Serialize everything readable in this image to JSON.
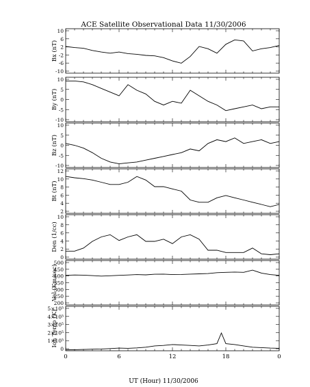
{
  "title": "ACE Satellite Observational Data   11/30/2006",
  "xlabel": "UT (Hour)  11/30/2006",
  "x_ticks": [
    "0",
    "6",
    "12",
    "18",
    "0"
  ],
  "chart_data": [
    {
      "type": "line",
      "ylabel": "Bx (nT)",
      "ylim": [
        -10,
        10
      ],
      "y_ticks": [
        "10",
        "6",
        "2",
        "-2",
        "-6",
        "-10"
      ],
      "x": [
        0,
        1,
        2,
        3,
        4,
        5,
        6,
        7,
        8,
        9,
        10,
        11,
        12,
        13,
        14,
        15,
        16,
        17,
        18,
        19,
        20,
        21,
        22,
        23,
        24
      ],
      "values": [
        2,
        1.5,
        1.2,
        0.2,
        -0.5,
        -1,
        -0.5,
        -1.2,
        -1.5,
        -2,
        -2.2,
        -3,
        -4.5,
        -5.5,
        -2.5,
        2,
        1,
        -1,
        3,
        5,
        4.5,
        0,
        1,
        1.5,
        2.5
      ]
    },
    {
      "type": "line",
      "ylabel": "By (nT)",
      "ylim": [
        -12,
        12
      ],
      "y_ticks": [
        "10",
        "5",
        "0",
        "-5",
        "-10"
      ],
      "x": [
        0,
        1,
        2,
        3,
        4,
        5,
        6,
        7,
        8,
        9,
        10,
        11,
        12,
        13,
        14,
        15,
        16,
        17,
        18,
        19,
        20,
        21,
        22,
        23,
        24
      ],
      "values": [
        10,
        10,
        9.5,
        8,
        6,
        4,
        2,
        8,
        5,
        3,
        -1,
        -3,
        -1,
        -2,
        5,
        2,
        -1,
        -3,
        -6,
        -5,
        -4,
        -3,
        -5,
        -4,
        -4
      ]
    },
    {
      "type": "line",
      "ylabel": "Bz (nT)",
      "ylim": [
        -12,
        12
      ],
      "y_ticks": [
        "10",
        "5",
        "0",
        "-5",
        "-10"
      ],
      "x": [
        0,
        1,
        2,
        3,
        4,
        5,
        6,
        7,
        8,
        9,
        10,
        11,
        12,
        13,
        14,
        15,
        16,
        17,
        18,
        19,
        20,
        21,
        22,
        23,
        24
      ],
      "values": [
        1,
        0,
        -1.5,
        -4,
        -7,
        -9,
        -10,
        -9.5,
        -9,
        -8,
        -7,
        -6,
        -5,
        -4,
        -2,
        -3,
        1,
        3,
        2,
        4,
        1,
        2,
        3,
        1,
        2
      ]
    },
    {
      "type": "line",
      "ylabel": "Bt (nT)",
      "ylim": [
        2,
        12
      ],
      "y_ticks": [
        "12",
        "10",
        "8",
        "6",
        "4",
        "2"
      ],
      "x": [
        0,
        1,
        2,
        3,
        4,
        5,
        6,
        7,
        8,
        9,
        10,
        11,
        12,
        13,
        14,
        15,
        16,
        17,
        18,
        19,
        20,
        21,
        22,
        23,
        24
      ],
      "values": [
        10.3,
        10,
        9.8,
        9.5,
        9,
        8.5,
        8.5,
        9,
        10.3,
        9.5,
        8,
        8,
        7.5,
        7,
        5,
        4.5,
        4.5,
        5.5,
        6,
        5.5,
        5,
        4.5,
        4,
        3.5,
        4
      ]
    },
    {
      "type": "line",
      "ylabel": "Den (1/cc)",
      "ylim": [
        0,
        10
      ],
      "y_ticks": [
        "10",
        "8",
        "6",
        "4",
        "2",
        "0"
      ],
      "x": [
        0,
        1,
        2,
        3,
        4,
        5,
        6,
        7,
        8,
        9,
        10,
        11,
        12,
        13,
        14,
        15,
        16,
        17,
        18,
        19,
        20,
        21,
        22,
        23,
        24
      ],
      "values": [
        1.8,
        1.8,
        2.5,
        4,
        5,
        5.5,
        4.2,
        5,
        5.5,
        4,
        4,
        4.5,
        3.5,
        5,
        5.5,
        4.5,
        2,
        2,
        1.5,
        1.5,
        1.5,
        2.5,
        1.2,
        1,
        1.2
      ]
    },
    {
      "type": "line",
      "ylabel": "Vel (Km/sec)",
      "ylim": [
        200,
        500
      ],
      "y_ticks": [
        "500",
        "450",
        "400",
        "350",
        "300",
        "250",
        "200"
      ],
      "x": [
        0,
        1,
        2,
        3,
        4,
        5,
        6,
        7,
        8,
        9,
        10,
        11,
        12,
        13,
        14,
        15,
        16,
        17,
        18,
        19,
        20,
        21,
        22,
        23,
        24
      ],
      "values": [
        400,
        402,
        401,
        398,
        395,
        397,
        400,
        402,
        405,
        403,
        407,
        408,
        405,
        406,
        408,
        410,
        412,
        418,
        420,
        422,
        420,
        435,
        415,
        405,
        400
      ]
    },
    {
      "type": "line",
      "ylabel": "Ion Temp (K)",
      "ylim": [
        0,
        500000
      ],
      "y_ticks": [
        "5×10⁵",
        "4×10⁵",
        "3×10⁵",
        "2×10⁵",
        "1×10⁵",
        "0"
      ],
      "x": [
        0,
        1,
        2,
        3,
        4,
        5,
        6,
        7,
        8,
        9,
        10,
        11,
        12,
        13,
        14,
        15,
        16,
        17,
        17.5,
        18,
        19,
        20,
        21,
        22,
        23,
        24
      ],
      "values": [
        10000,
        12000,
        15000,
        18000,
        20000,
        25000,
        30000,
        28000,
        32000,
        40000,
        55000,
        60000,
        70000,
        65000,
        60000,
        55000,
        65000,
        80000,
        200000,
        80000,
        70000,
        55000,
        40000,
        35000,
        30000,
        28000
      ]
    }
  ]
}
